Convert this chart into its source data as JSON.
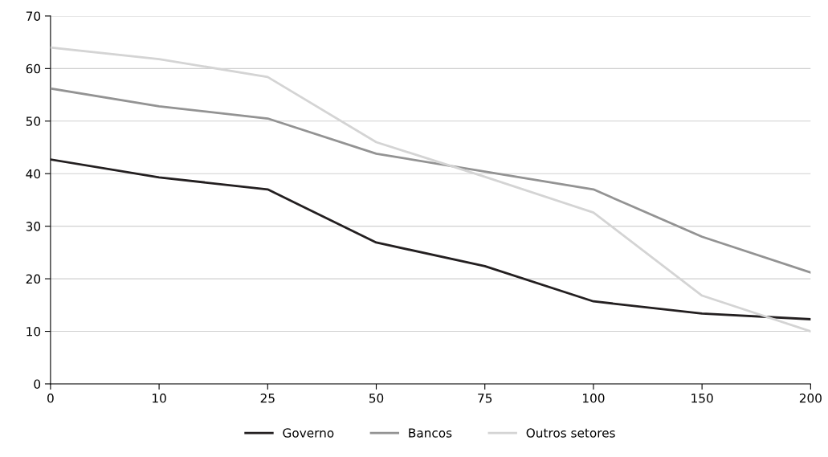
{
  "chart_data": {
    "type": "line",
    "categories": [
      "0",
      "10",
      "25",
      "50",
      "75",
      "100",
      "150",
      "200"
    ],
    "series": [
      {
        "name": "Governo",
        "color": "#231f20",
        "values": [
          42.7,
          39.3,
          37.0,
          26.9,
          22.4,
          15.7,
          13.4,
          12.3
        ]
      },
      {
        "name": "Bancos",
        "color": "#939393",
        "values": [
          56.2,
          52.8,
          50.5,
          43.8,
          40.4,
          37.0,
          28.0,
          21.2
        ]
      },
      {
        "name": "Outros setores",
        "color": "#d4d4d4",
        "values": [
          64.0,
          61.8,
          58.4,
          46.0,
          39.4,
          32.6,
          16.8,
          10.0
        ]
      }
    ],
    "ylim": [
      0,
      70
    ],
    "yticks": [
      0,
      10,
      20,
      30,
      40,
      50,
      60,
      70
    ],
    "grid": "y",
    "legend": "bottom",
    "marker": "none",
    "line_style": "solid"
  }
}
